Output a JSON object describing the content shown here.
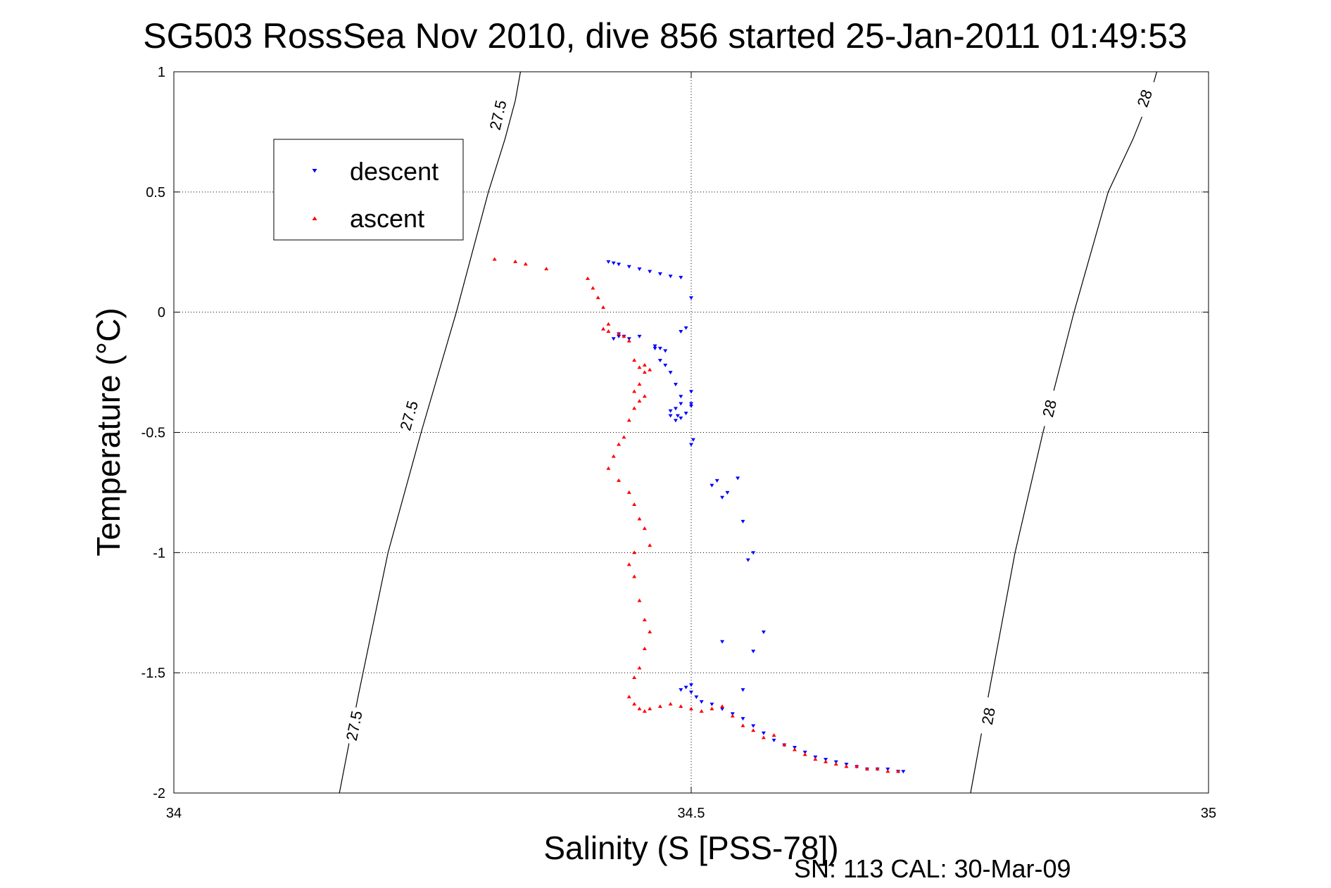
{
  "chart_data": {
    "type": "scatter",
    "title": "SG503 RossSea Nov 2010, dive 856 started 25-Jan-2011 01:49:53",
    "xlabel": "Salinity (S [PSS-78])",
    "ylabel": "Temperature (°C)",
    "footer": "SN: 113  CAL: 30-Mar-09",
    "xlim": [
      34,
      35
    ],
    "ylim": [
      -2,
      1
    ],
    "xticks": [
      "34",
      "34.5",
      "35"
    ],
    "yticks": [
      "1",
      "0.5",
      "0",
      "-0.5",
      "-1",
      "-1.5",
      "-2"
    ],
    "grid": true,
    "legend_position": "upper-left",
    "legend": [
      {
        "label": "descent",
        "color": "#0000ff",
        "marker": "triangle-down"
      },
      {
        "label": "ascent",
        "color": "#ff0000",
        "marker": "triangle-up"
      }
    ],
    "isopycnals": [
      {
        "label": "27.5",
        "color": "#000000",
        "points": [
          [
            34.16,
            -2.0
          ],
          [
            34.178,
            -1.6
          ],
          [
            34.207,
            -1.0
          ],
          [
            34.239,
            -0.5
          ],
          [
            34.273,
            0.0
          ],
          [
            34.304,
            0.5
          ],
          [
            34.32,
            0.72
          ],
          [
            34.33,
            0.88
          ],
          [
            34.335,
            1.0
          ]
        ],
        "label_positions": [
          [
            34.174,
            -1.72
          ],
          [
            34.227,
            -0.43
          ],
          [
            34.313,
            0.82
          ]
        ]
      },
      {
        "label": "28",
        "color": "#000000",
        "points": [
          [
            34.77,
            -2.0
          ],
          [
            34.787,
            -1.6
          ],
          [
            34.813,
            -1.0
          ],
          [
            34.84,
            -0.5
          ],
          [
            34.87,
            0.0
          ],
          [
            34.903,
            0.5
          ],
          [
            34.927,
            0.72
          ],
          [
            34.942,
            0.88
          ],
          [
            34.95,
            1.0
          ]
        ],
        "label_positions": [
          [
            34.787,
            -1.68
          ],
          [
            34.846,
            -0.4
          ],
          [
            34.938,
            0.89
          ]
        ]
      }
    ],
    "series": [
      {
        "name": "descent",
        "color": "#0000ff",
        "marker": "triangle-down",
        "x": [
          34.42,
          34.425,
          34.43,
          34.44,
          34.45,
          34.46,
          34.47,
          34.48,
          34.49,
          34.5,
          34.495,
          34.49,
          34.465,
          34.47,
          34.475,
          34.45,
          34.44,
          34.435,
          34.43,
          34.43,
          34.425,
          34.465,
          34.47,
          34.475,
          34.48,
          34.485,
          34.49,
          34.5,
          34.5,
          34.495,
          34.49,
          34.485,
          34.48,
          34.48,
          34.485,
          34.487,
          34.49,
          34.5,
          34.502,
          34.5,
          34.52,
          34.525,
          34.545,
          34.535,
          34.53,
          34.55,
          34.56,
          34.555,
          34.53,
          34.57,
          34.56,
          34.55,
          34.5,
          34.495,
          34.49,
          34.5,
          34.505,
          34.51,
          34.52,
          34.53,
          34.54,
          34.55,
          34.56,
          34.57,
          34.58,
          34.59,
          34.6,
          34.61,
          34.62,
          34.63,
          34.64,
          34.65,
          34.66,
          34.67,
          34.68,
          34.69,
          34.7,
          34.705
        ],
        "y": [
          0.21,
          0.205,
          0.2,
          0.19,
          0.18,
          0.17,
          0.16,
          0.15,
          0.145,
          0.06,
          -0.065,
          -0.08,
          -0.14,
          -0.15,
          -0.16,
          -0.1,
          -0.11,
          -0.1,
          -0.09,
          -0.1,
          -0.11,
          -0.15,
          -0.2,
          -0.22,
          -0.25,
          -0.3,
          -0.35,
          -0.33,
          -0.38,
          -0.42,
          -0.44,
          -0.4,
          -0.41,
          -0.43,
          -0.45,
          -0.43,
          -0.38,
          -0.39,
          -0.53,
          -0.55,
          -0.72,
          -0.7,
          -0.69,
          -0.75,
          -0.77,
          -0.87,
          -1.0,
          -1.03,
          -1.37,
          -1.33,
          -1.41,
          -1.57,
          -1.55,
          -1.56,
          -1.57,
          -1.58,
          -1.6,
          -1.62,
          -1.63,
          -1.65,
          -1.67,
          -1.69,
          -1.72,
          -1.75,
          -1.78,
          -1.8,
          -1.81,
          -1.83,
          -1.85,
          -1.86,
          -1.87,
          -1.88,
          -1.89,
          -1.9,
          -1.9,
          -1.9,
          -1.91,
          -1.91
        ]
      },
      {
        "name": "ascent",
        "color": "#ff0000",
        "marker": "triangle-up",
        "x": [
          34.31,
          34.33,
          34.34,
          34.36,
          34.4,
          34.405,
          34.41,
          34.415,
          34.42,
          34.415,
          34.42,
          34.43,
          34.435,
          34.44,
          34.445,
          34.45,
          34.455,
          34.46,
          34.455,
          34.45,
          34.445,
          34.455,
          34.45,
          34.445,
          34.44,
          34.435,
          34.43,
          34.425,
          34.42,
          34.43,
          34.44,
          34.445,
          34.45,
          34.455,
          34.46,
          34.445,
          34.44,
          34.445,
          34.45,
          34.455,
          34.46,
          34.455,
          34.45,
          34.445,
          34.44,
          34.445,
          34.45,
          34.455,
          34.46,
          34.47,
          34.48,
          34.49,
          34.5,
          34.51,
          34.52,
          34.53,
          34.54,
          34.55,
          34.56,
          34.57,
          34.58,
          34.59,
          34.6,
          34.61,
          34.62,
          34.63,
          34.64,
          34.65,
          34.66,
          34.67,
          34.68,
          34.69,
          34.7
        ],
        "y": [
          0.22,
          0.21,
          0.2,
          0.18,
          0.14,
          0.1,
          0.06,
          0.02,
          -0.05,
          -0.07,
          -0.08,
          -0.09,
          -0.1,
          -0.12,
          -0.2,
          -0.23,
          -0.25,
          -0.24,
          -0.22,
          -0.3,
          -0.33,
          -0.35,
          -0.37,
          -0.4,
          -0.45,
          -0.52,
          -0.55,
          -0.6,
          -0.65,
          -0.7,
          -0.75,
          -0.8,
          -0.86,
          -0.9,
          -0.97,
          -1.0,
          -1.05,
          -1.1,
          -1.2,
          -1.28,
          -1.33,
          -1.4,
          -1.48,
          -1.52,
          -1.6,
          -1.63,
          -1.65,
          -1.66,
          -1.65,
          -1.64,
          -1.63,
          -1.64,
          -1.65,
          -1.66,
          -1.65,
          -1.64,
          -1.68,
          -1.72,
          -1.74,
          -1.77,
          -1.76,
          -1.8,
          -1.82,
          -1.84,
          -1.86,
          -1.87,
          -1.88,
          -1.89,
          -1.89,
          -1.9,
          -1.9,
          -1.91,
          -1.91
        ]
      }
    ]
  }
}
